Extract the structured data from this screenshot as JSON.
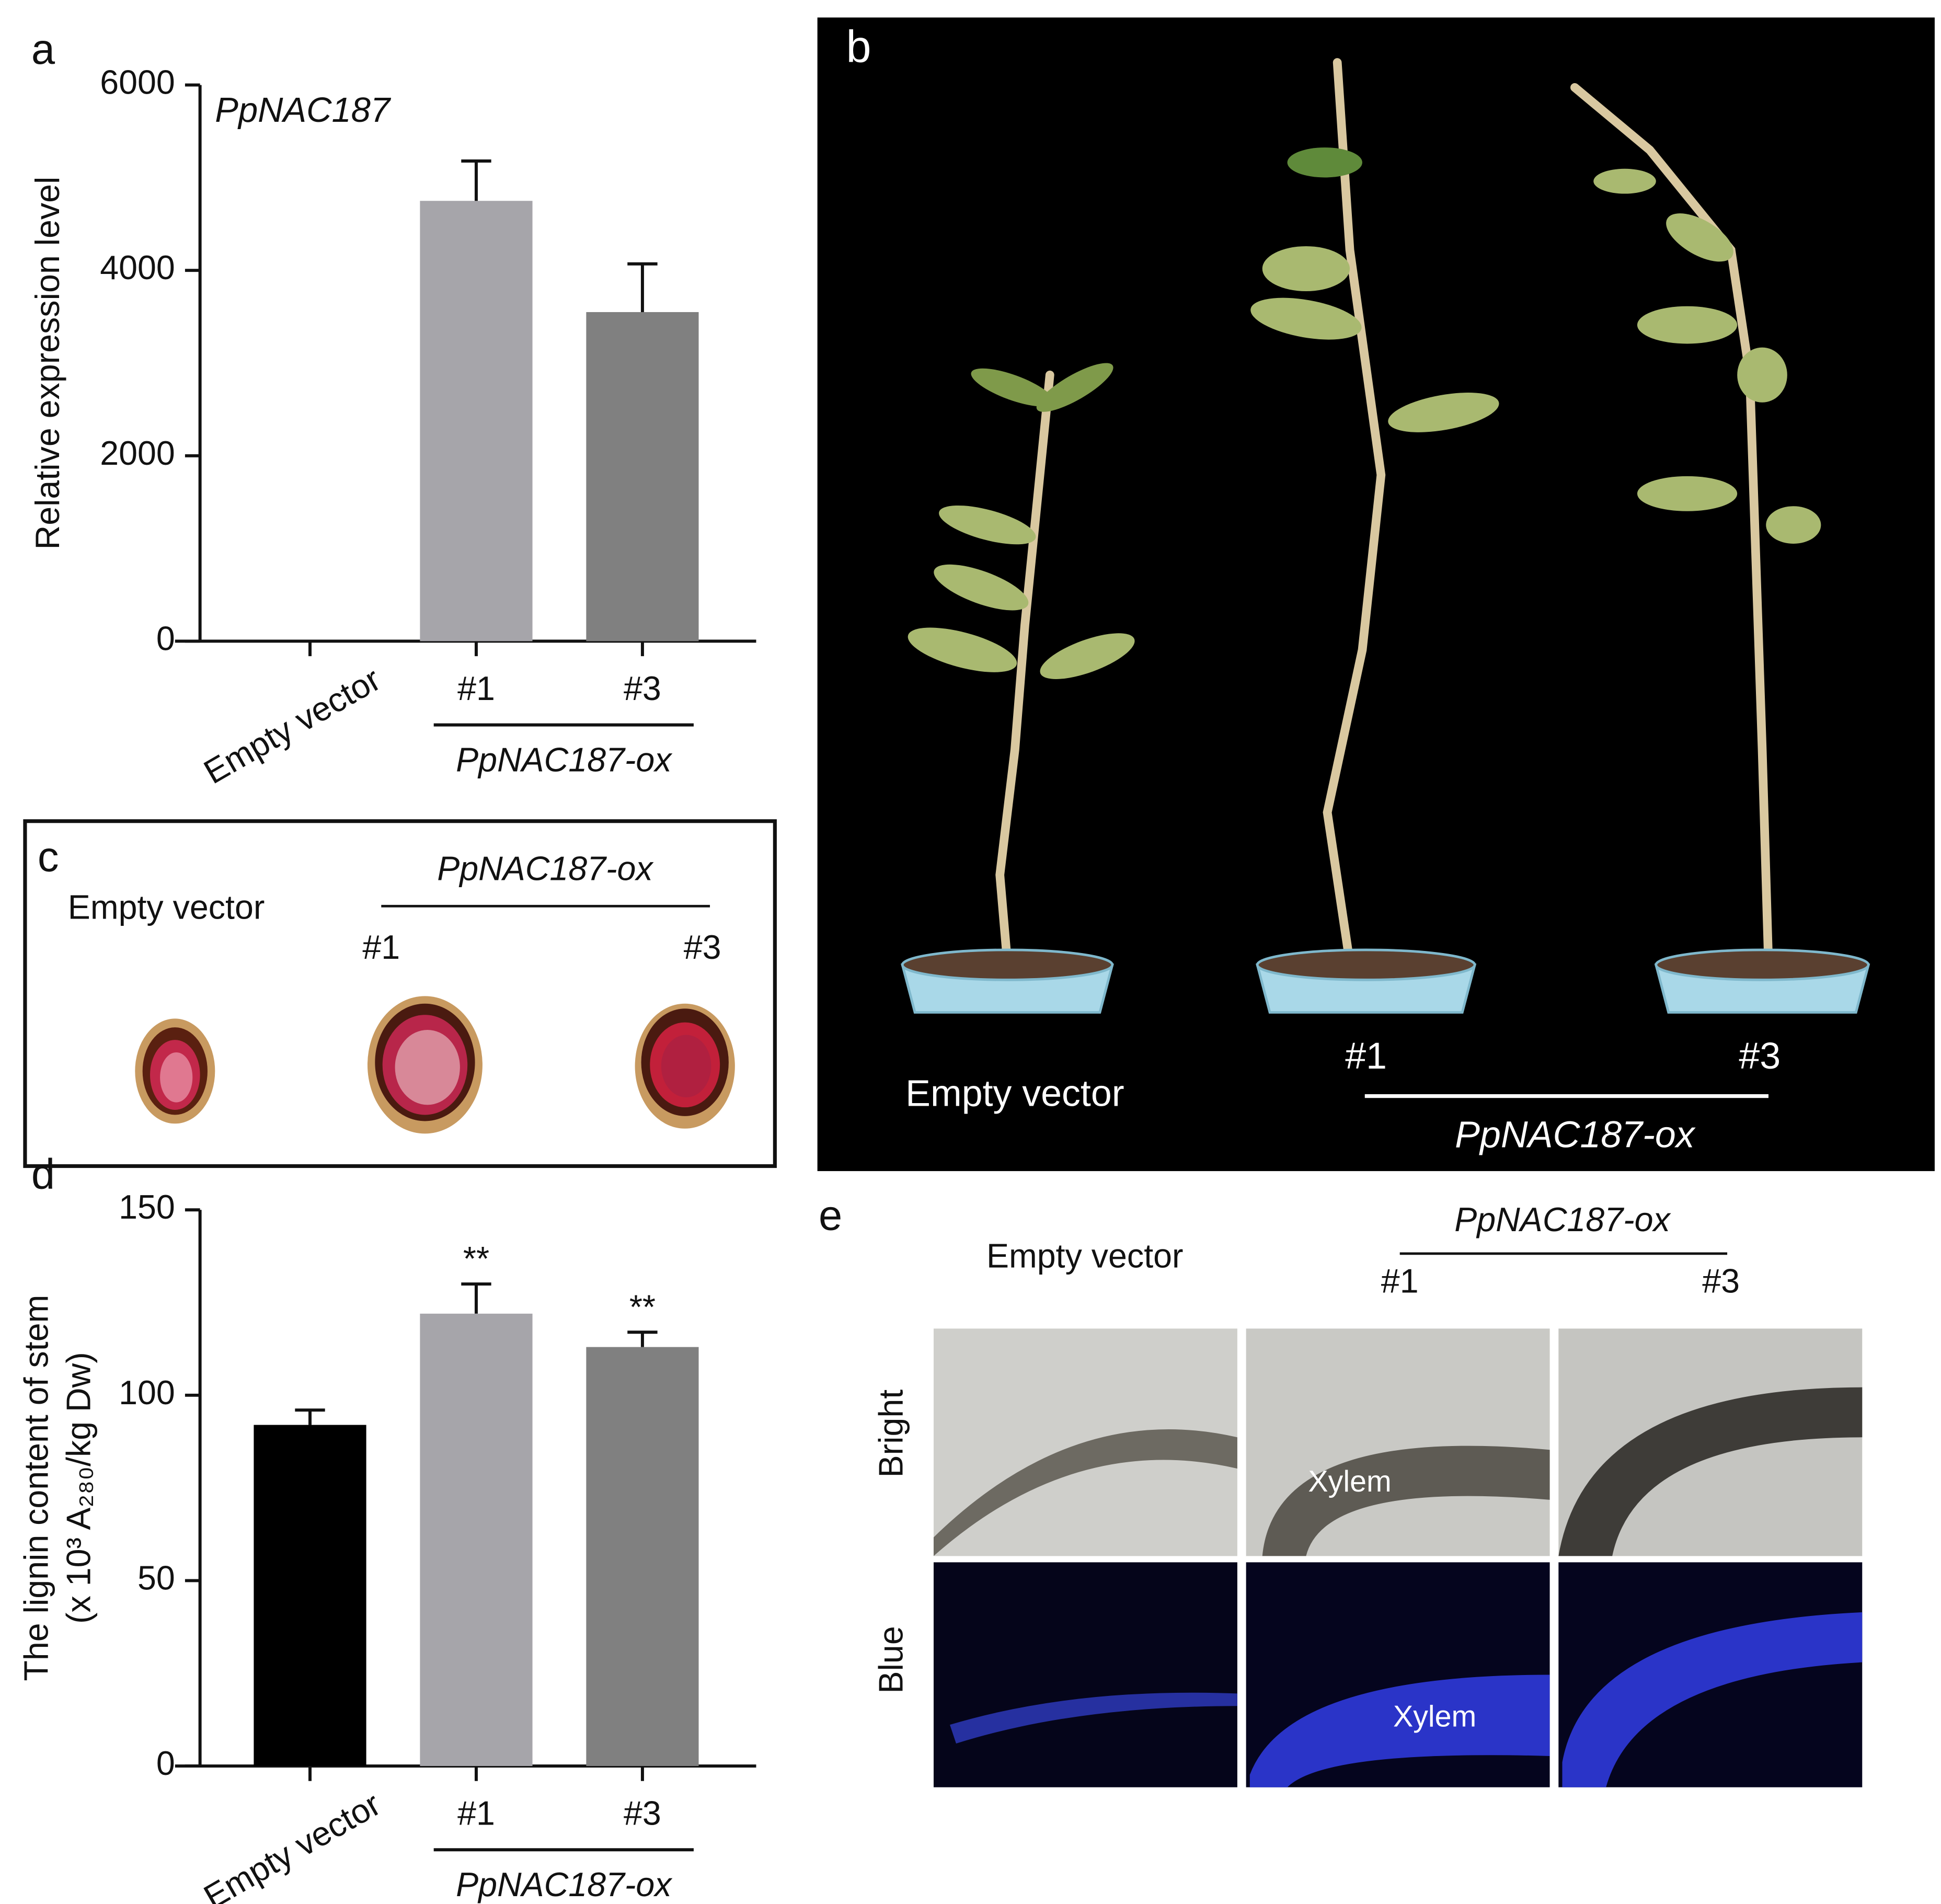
{
  "chart_data": [
    {
      "type": "bar",
      "panel_label": "a",
      "annotation": "PpNAC187",
      "ylabel": [
        "Relative expression level"
      ],
      "categories": [
        "Empty vector",
        "#1",
        "#3"
      ],
      "group_label": "PpNAC187-ox",
      "values": [
        1,
        4750,
        3550
      ],
      "errors": [
        null,
        430,
        520
      ],
      "colors": [
        "#000000",
        "#a6a5aa",
        "#808080"
      ],
      "ylim": [
        0,
        6000
      ],
      "yticks": [
        0,
        2000,
        4000,
        6000
      ]
    },
    {
      "type": "bar",
      "panel_label": "d",
      "ylabel": [
        "The lignin content of stem",
        "(x 10³ A₂₈₀/kg Dw)"
      ],
      "categories": [
        "Empty vector",
        "#1",
        "#3"
      ],
      "group_label": "PpNAC187-ox",
      "values": [
        92,
        122,
        113
      ],
      "errors": [
        4,
        8,
        4
      ],
      "significance": [
        null,
        "**",
        "**"
      ],
      "colors": [
        "#000000",
        "#a6a5aa",
        "#808080"
      ],
      "ylim": [
        0,
        150
      ],
      "yticks": [
        0,
        50,
        100,
        150
      ]
    }
  ],
  "panel_b": {
    "label": "b",
    "empty_vector": "Empty vector",
    "line1": "#1",
    "line3": "#3",
    "group_label": "PpNAC187-ox"
  },
  "panel_c": {
    "label": "c",
    "empty_vector": "Empty vector",
    "group_label": "PpNAC187-ox",
    "line1": "#1",
    "line3": "#3"
  },
  "panel_e": {
    "label": "e",
    "empty_vector": "Empty vector",
    "group_label": "PpNAC187-ox",
    "line1": "#1",
    "line3": "#3",
    "row1": "Bright",
    "row2": "Blue",
    "xylem_bright": "Xylem",
    "xylem_blue": "Xylem"
  }
}
